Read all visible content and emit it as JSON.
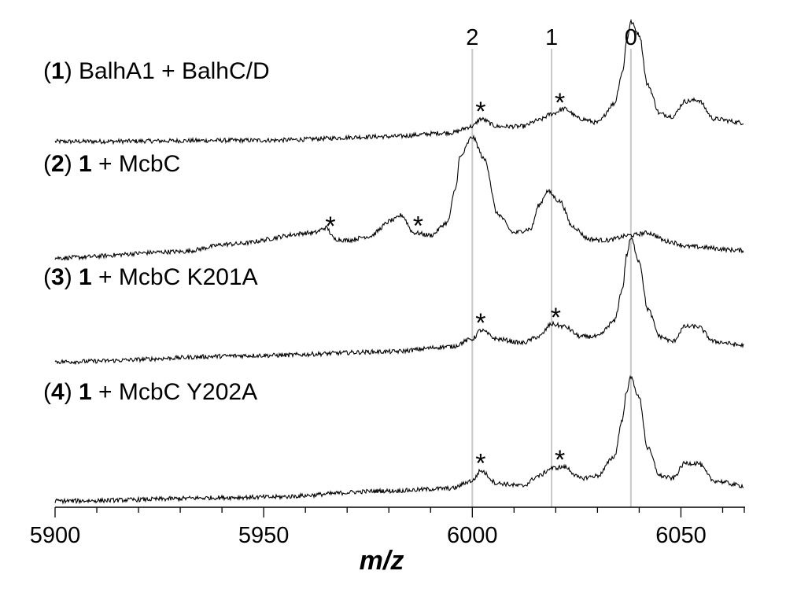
{
  "chart_data": {
    "type": "line",
    "title": "",
    "xlabel": "m/z",
    "ylabel": "",
    "xlim": [
      5900,
      6065
    ],
    "x_ticks": [
      5900,
      5950,
      6000,
      6050
    ],
    "grid": false,
    "legend": "none",
    "reference_lines": [
      {
        "label": "2",
        "x": 6000
      },
      {
        "label": "1",
        "x": 6019
      },
      {
        "label": "0",
        "x": 6038
      }
    ],
    "annotation_marker": "*",
    "series": [
      {
        "id": "1",
        "label_parts": [
          [
            "(",
            false
          ],
          [
            "1",
            true
          ],
          [
            ") BalhA1 + BalhC/D",
            false
          ]
        ],
        "x": [
          5900,
          5950,
          5980,
          5995,
          6000,
          6002,
          6006,
          6012,
          6016,
          6019,
          6022,
          6026,
          6030,
          6034,
          6036,
          6037,
          6038,
          6040,
          6042,
          6045,
          6048,
          6051,
          6054,
          6058,
          6065
        ],
        "values": [
          0.0,
          0.01,
          0.04,
          0.07,
          0.12,
          0.18,
          0.12,
          0.12,
          0.17,
          0.22,
          0.26,
          0.18,
          0.15,
          0.3,
          0.55,
          0.8,
          0.95,
          0.85,
          0.45,
          0.22,
          0.2,
          0.32,
          0.33,
          0.18,
          0.15
        ],
        "peak_markers_x": [
          6002,
          6021
        ]
      },
      {
        "id": "2",
        "label_parts": [
          [
            "(",
            false
          ],
          [
            "2",
            true
          ],
          [
            ") ",
            false
          ],
          [
            "1",
            true
          ],
          [
            " + McbC",
            false
          ]
        ],
        "x": [
          5900,
          5930,
          5942,
          5962,
          5965,
          5967,
          5970,
          5975,
          5981,
          5983,
          5986,
          5990,
          5994,
          5996,
          5997,
          6000,
          6003,
          6006,
          6010,
          6014,
          6016,
          6018,
          6021,
          6024,
          6028,
          6032,
          6038,
          6042,
          6047,
          6052,
          6065
        ],
        "values": [
          0.0,
          0.05,
          0.11,
          0.2,
          0.24,
          0.15,
          0.14,
          0.17,
          0.3,
          0.34,
          0.2,
          0.18,
          0.28,
          0.55,
          0.8,
          0.96,
          0.78,
          0.35,
          0.2,
          0.23,
          0.42,
          0.53,
          0.45,
          0.25,
          0.15,
          0.14,
          0.18,
          0.2,
          0.13,
          0.09,
          0.06
        ],
        "peak_markers_x": [
          5966,
          5987
        ]
      },
      {
        "id": "3",
        "label_parts": [
          [
            "(",
            false
          ],
          [
            "3",
            true
          ],
          [
            ") ",
            false
          ],
          [
            "1",
            true
          ],
          [
            " + McbC K201A",
            false
          ]
        ],
        "x": [
          5900,
          5950,
          5980,
          5995,
          6000,
          6002,
          6006,
          6012,
          6016,
          6019,
          6022,
          6026,
          6030,
          6034,
          6036,
          6037,
          6038,
          6040,
          6042,
          6045,
          6048,
          6051,
          6054,
          6058,
          6065
        ],
        "values": [
          0.0,
          0.05,
          0.08,
          0.12,
          0.18,
          0.25,
          0.18,
          0.15,
          0.2,
          0.3,
          0.28,
          0.2,
          0.2,
          0.32,
          0.58,
          0.85,
          0.98,
          0.8,
          0.42,
          0.2,
          0.16,
          0.28,
          0.28,
          0.16,
          0.13
        ],
        "peak_markers_x": [
          6002,
          6020
        ]
      },
      {
        "id": "4",
        "label_parts": [
          [
            "(",
            false
          ],
          [
            "4",
            true
          ],
          [
            ") ",
            false
          ],
          [
            "1",
            true
          ],
          [
            " + McbC Y202A",
            false
          ]
        ],
        "x": [
          5900,
          5950,
          5980,
          5995,
          6000,
          6002,
          6006,
          6012,
          6016,
          6019,
          6022,
          6026,
          6030,
          6034,
          6036,
          6037,
          6038,
          6040,
          6042,
          6045,
          6048,
          6051,
          6054,
          6058,
          6065
        ],
        "values": [
          0.0,
          0.03,
          0.08,
          0.1,
          0.16,
          0.24,
          0.14,
          0.12,
          0.2,
          0.26,
          0.27,
          0.18,
          0.2,
          0.35,
          0.65,
          0.88,
          0.98,
          0.82,
          0.42,
          0.2,
          0.18,
          0.3,
          0.3,
          0.16,
          0.12
        ],
        "peak_markers_x": [
          6002,
          6021
        ]
      }
    ]
  }
}
